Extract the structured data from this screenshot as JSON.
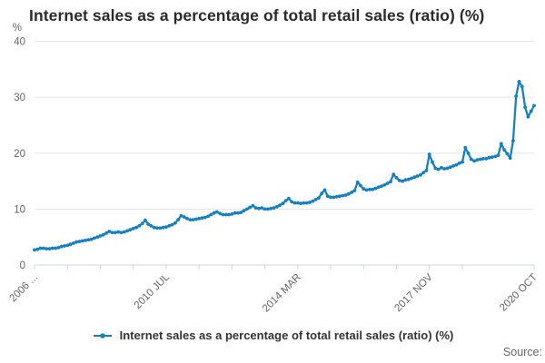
{
  "title": "Internet sales as a percentage of total retail sales (ratio) (%)",
  "legend": {
    "label": "Internet sales as a percentage of total retail sales (ratio) (%)"
  },
  "source": {
    "label": "Source:"
  },
  "colors": {
    "series": "#1380c4",
    "grid": "#e6e6e6",
    "axis_line": "#ccd6eb",
    "axis_text": "#666666",
    "title_text": "#2b2b2b",
    "legend_text": "#333333"
  },
  "chart_data": {
    "type": "line",
    "title": "Internet sales as a percentage of total retail sales (ratio) (%)",
    "xlabel": "",
    "ylabel": "%",
    "grid": "horizontal",
    "legend_position": "bottom-center",
    "y_axis": {
      "unit": "%",
      "min": 0,
      "max": 40,
      "ticks": [
        0,
        10,
        20,
        30,
        40
      ]
    },
    "x_axis": {
      "frequency": "monthly",
      "total_points": 168,
      "minor_tick_every": 11,
      "tick_labels": [
        {
          "index": 0,
          "label": "2006 ..."
        },
        {
          "index": 44,
          "label": "2010 JUL"
        },
        {
          "index": 88,
          "label": "2014 MAR"
        },
        {
          "index": 132,
          "label": "2017 NOV"
        },
        {
          "index": 167,
          "label": "2020 OCT"
        }
      ]
    },
    "series": [
      {
        "name": "Internet sales as a percentage of total retail sales (ratio) (%)",
        "color": "#1380c4",
        "values": [
          2.7,
          2.8,
          3.0,
          3.0,
          2.9,
          2.9,
          3.0,
          3.0,
          3.1,
          3.3,
          3.4,
          3.5,
          3.7,
          3.9,
          4.1,
          4.2,
          4.3,
          4.4,
          4.5,
          4.6,
          4.8,
          5.0,
          5.2,
          5.4,
          5.7,
          6.0,
          5.8,
          5.8,
          5.9,
          5.8,
          5.9,
          6.1,
          6.3,
          6.5,
          6.7,
          7.0,
          7.4,
          8.0,
          7.3,
          7.0,
          6.7,
          6.6,
          6.6,
          6.7,
          6.8,
          7.0,
          7.2,
          7.5,
          8.1,
          8.8,
          8.6,
          8.3,
          8.1,
          8.1,
          8.2,
          8.3,
          8.4,
          8.5,
          8.7,
          9.0,
          9.3,
          9.5,
          9.2,
          9.0,
          9.0,
          9.0,
          9.1,
          9.3,
          9.3,
          9.4,
          9.7,
          10.0,
          10.3,
          10.6,
          10.2,
          10.1,
          10.2,
          10.0,
          10.0,
          10.1,
          10.2,
          10.4,
          10.7,
          11.0,
          11.5,
          11.9,
          11.3,
          11.1,
          11.1,
          11.0,
          11.1,
          11.1,
          11.2,
          11.4,
          11.7,
          12.0,
          12.8,
          13.4,
          12.3,
          12.1,
          12.1,
          12.2,
          12.3,
          12.4,
          12.5,
          12.7,
          13.0,
          13.3,
          14.8,
          14.2,
          13.6,
          13.4,
          13.5,
          13.5,
          13.7,
          13.9,
          14.1,
          14.3,
          14.6,
          14.9,
          16.2,
          15.6,
          15.1,
          15.0,
          15.2,
          15.3,
          15.5,
          15.7,
          15.9,
          16.1,
          16.5,
          16.9,
          19.8,
          18.4,
          17.3,
          17.1,
          17.4,
          17.2,
          17.3,
          17.5,
          17.7,
          17.9,
          18.2,
          18.4,
          21.0,
          20.0,
          18.9,
          18.6,
          18.8,
          18.9,
          19.0,
          19.0,
          19.2,
          19.3,
          19.4,
          19.6,
          21.7,
          20.6,
          19.9,
          19.1,
          22.2,
          30.2,
          32.8,
          31.9,
          28.2,
          26.5,
          27.5,
          28.5
        ]
      }
    ]
  }
}
